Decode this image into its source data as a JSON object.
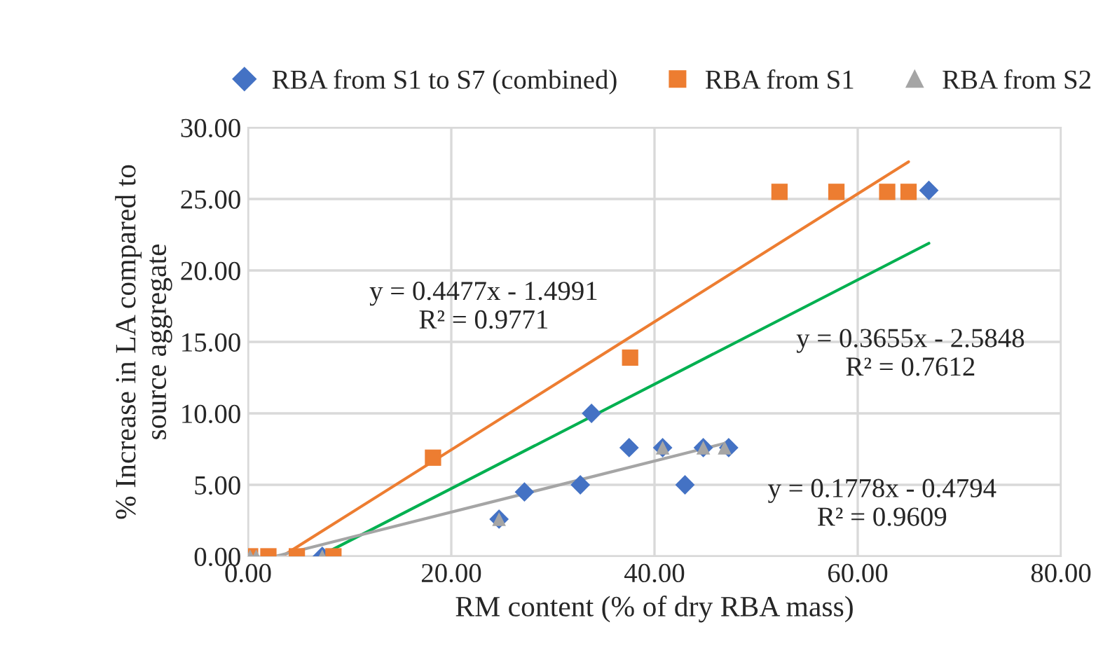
{
  "chart_data": {
    "type": "scatter",
    "xlabel": "RM content (% of dry RBA mass)",
    "ylabel": "% Increase in LA compared to\nsource aggregate",
    "xlim": [
      0,
      80
    ],
    "xticks": [
      {
        "value": 0,
        "label": "0.00"
      },
      {
        "value": 20,
        "label": "20.00"
      },
      {
        "value": 40,
        "label": "40.00"
      },
      {
        "value": 60,
        "label": "60.00"
      },
      {
        "value": 80,
        "label": "80.00"
      }
    ],
    "ylim": [
      0,
      30
    ],
    "yticks": [
      {
        "value": 0,
        "label": "0.00"
      },
      {
        "value": 5,
        "label": "5.00"
      },
      {
        "value": 10,
        "label": "10.00"
      },
      {
        "value": 15,
        "label": "15.00"
      },
      {
        "value": 20,
        "label": "20.00"
      },
      {
        "value": 25,
        "label": "25.00"
      },
      {
        "value": 30,
        "label": "30.00"
      }
    ],
    "grid": true,
    "legend": "top",
    "series": [
      {
        "name": "RBA from S1 to S7 (combined)",
        "color": "#4472c4",
        "marker": "diamond",
        "x": [
          7.3,
          24.7,
          27.2,
          32.7,
          33.8,
          37.5,
          40.8,
          43.0,
          44.8,
          47.3,
          67.0
        ],
        "values": [
          0,
          2.6,
          4.5,
          5.0,
          10.0,
          7.6,
          7.6,
          5.0,
          7.6,
          7.6,
          25.6
        ]
      },
      {
        "name": "RBA from S1",
        "color": "#ed7d31",
        "marker": "square",
        "x": [
          0.2,
          2.0,
          4.8,
          8.4,
          18.2,
          37.6,
          52.3,
          57.9,
          62.9,
          65.0
        ],
        "values": [
          0,
          0,
          0,
          0,
          6.9,
          13.9,
          25.5,
          25.5,
          25.5,
          25.5
        ]
      },
      {
        "name": "RBA from S2",
        "color": "#a5a5a5",
        "marker": "triangle",
        "x": [
          0.2,
          0.8,
          7.3,
          24.7,
          40.8,
          44.8,
          46.9
        ],
        "values": [
          0,
          0,
          0,
          2.6,
          7.6,
          7.6,
          7.6
        ]
      },
      {
        "type": "line",
        "color": "#ed7d31",
        "x": [
          3.35,
          65.0
        ],
        "values": [
          0,
          27.6
        ]
      },
      {
        "type": "line",
        "color": "#00b050",
        "x": [
          7.3,
          67.0
        ],
        "values": [
          0.1,
          21.9
        ]
      },
      {
        "type": "line",
        "color": "#a5a5a5",
        "x": [
          2.7,
          46.9
        ],
        "values": [
          0,
          7.9
        ]
      }
    ],
    "annotations": [
      "y = 0.4477x - 1.4991\nR² = 0.9771",
      "y = 0.3655x - 2.5848\nR² = 0.7612",
      "y = 0.1778x - 0.4794\nR² = 0.9609"
    ]
  }
}
